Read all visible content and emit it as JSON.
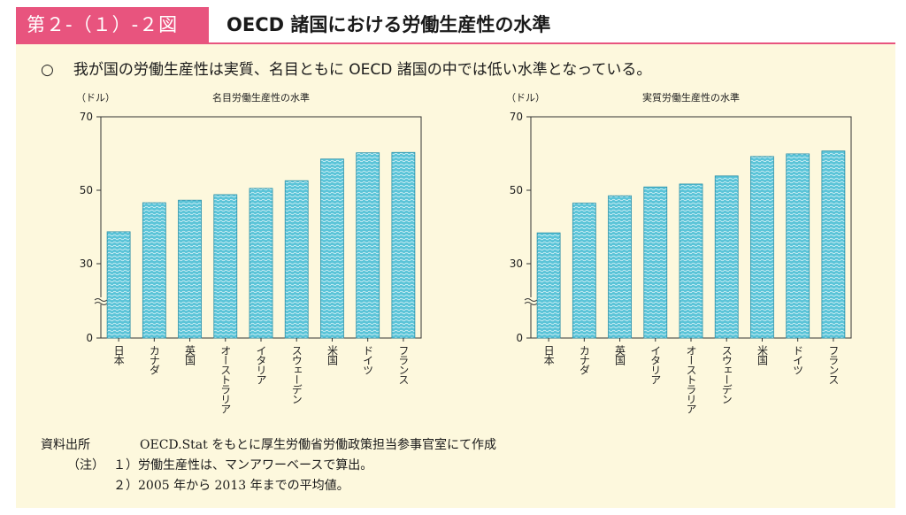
{
  "header": {
    "figure_no": "第２-（１）-２図",
    "title": "OECD 諸国における労働生産性の水準"
  },
  "lead": {
    "bullet": "○",
    "text": "我が国の労働生産性は実質、名目ともに OECD 諸国の中では低い水準となっている。"
  },
  "colors": {
    "badge": "#e8547e",
    "bar_fill": "#5bc4d8",
    "bar_stroke": "#2a8fa8",
    "background": "#fdf8dd"
  },
  "chart_data": [
    {
      "type": "bar",
      "title": "名目労働生産性の水準",
      "ylabel": "（ドル）",
      "ylim": [
        0,
        70
      ],
      "axis_break": true,
      "yticks": [
        "0",
        "30",
        "50",
        "70"
      ],
      "categories": [
        "日本",
        "カナダ",
        "英国",
        "オーストラリア",
        "イタリア",
        "スウェーデン",
        "米国",
        "ドイツ",
        "フランス"
      ],
      "values": [
        38.7,
        46.6,
        47.3,
        48.8,
        50.5,
        52.6,
        58.5,
        60.2,
        60.3
      ]
    },
    {
      "type": "bar",
      "title": "実質労働生産性の水準",
      "ylabel": "（ドル）",
      "ylim": [
        0,
        70
      ],
      "axis_break": true,
      "yticks": [
        "0",
        "30",
        "50",
        "70"
      ],
      "categories": [
        "日本",
        "カナダ",
        "英国",
        "イタリア",
        "オーストラリア",
        "スウェーデン",
        "米国",
        "ドイツ",
        "フランス"
      ],
      "values": [
        38.4,
        46.5,
        48.5,
        50.9,
        51.7,
        53.9,
        59.2,
        59.9,
        60.7
      ]
    }
  ],
  "notes": {
    "source_label": "資料出所",
    "source_text": "OECD.Stat をもとに厚生労働省労働政策担当参事官室にて作成",
    "note_label": "（注）",
    "note1": "１）労働生産性は、マンアワーベースで算出。",
    "note2": "２）2005 年から 2013 年までの平均値。"
  }
}
